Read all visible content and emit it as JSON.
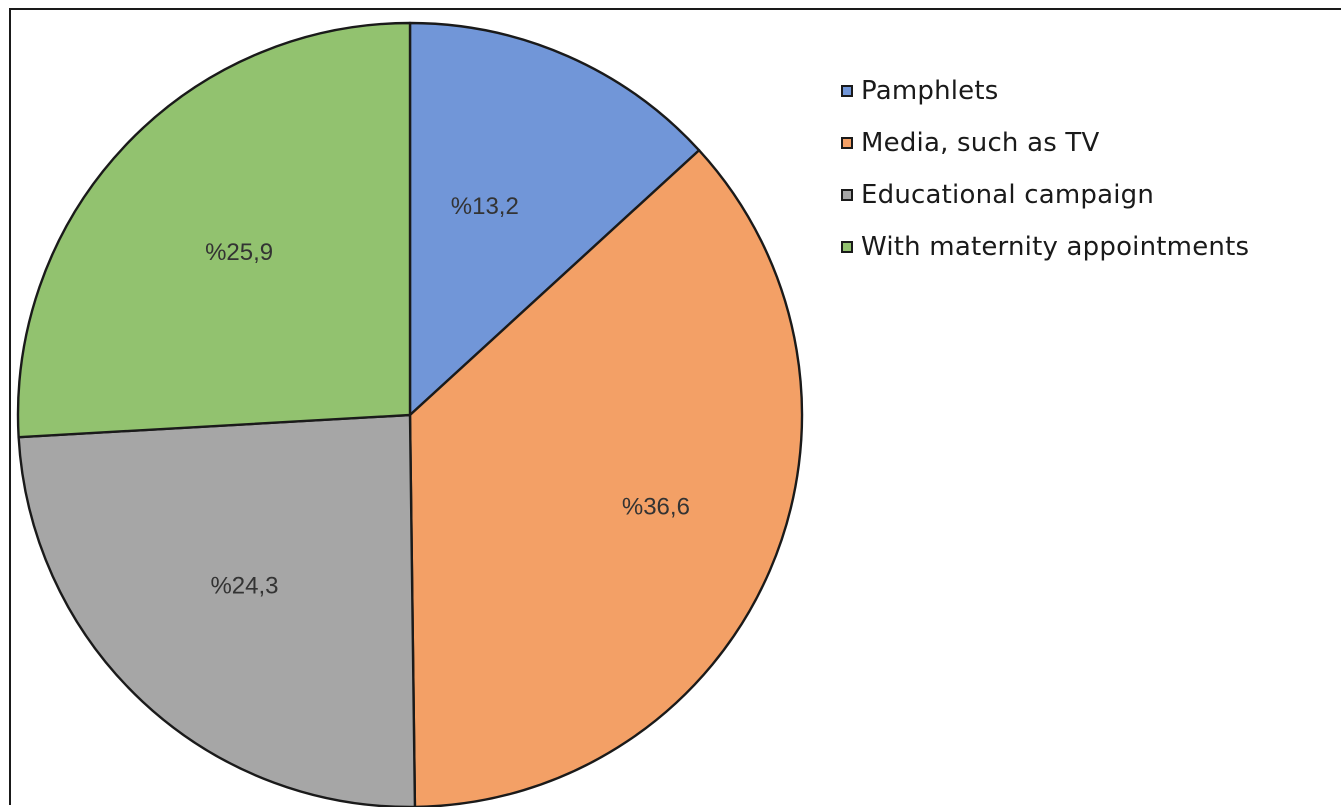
{
  "chart_data": {
    "type": "pie",
    "title": "",
    "categories": [
      "Pamphlets",
      "Media, such as TV",
      "Educational campaign",
      "With maternity appointments"
    ],
    "values": [
      13.2,
      36.6,
      24.3,
      25.9
    ],
    "data_labels": [
      "%13,2",
      "%36,6",
      "%24,3",
      "%25,9"
    ],
    "colors": [
      "#7196d8",
      "#f3a066",
      "#a6a6a6",
      "#92c26f"
    ],
    "start_angle_deg": 0,
    "direction": "clockwise",
    "legend": {
      "position": "right",
      "items": [
        {
          "label": "Pamphlets",
          "color": "#7196d8"
        },
        {
          "label": "Media, such as TV",
          "color": "#f3a066"
        },
        {
          "label": "Educational campaign",
          "color": "#a6a6a6"
        },
        {
          "label": "With maternity appointments",
          "color": "#92c26f"
        }
      ]
    }
  }
}
